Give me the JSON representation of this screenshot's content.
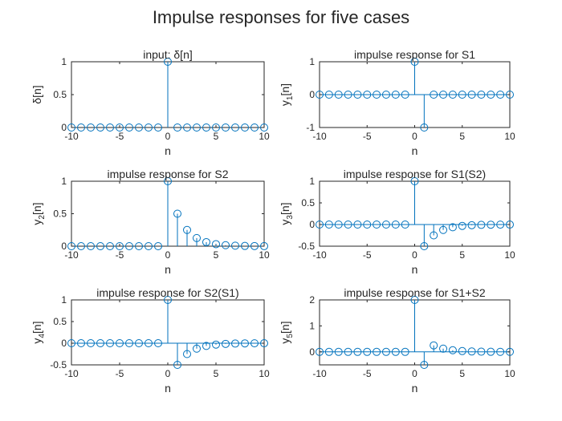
{
  "figure": {
    "title": "Impulse responses for five cases"
  },
  "chart_data": [
    {
      "type": "stem",
      "title": "input: δ[n]",
      "xlabel": "n",
      "ylabel": "δ[n]",
      "xlim": [
        -10,
        10
      ],
      "ylim": [
        0,
        1
      ],
      "xticks": [
        "-10",
        "-5",
        "0",
        "5",
        "10"
      ],
      "yticks": [
        "0",
        "0.5",
        "1"
      ],
      "x": [
        -10,
        -9,
        -8,
        -7,
        -6,
        -5,
        -4,
        -3,
        -2,
        -1,
        0,
        1,
        2,
        3,
        4,
        5,
        6,
        7,
        8,
        9,
        10
      ],
      "y": [
        0,
        0,
        0,
        0,
        0,
        0,
        0,
        0,
        0,
        0,
        1,
        0,
        0,
        0,
        0,
        0,
        0,
        0,
        0,
        0,
        0
      ]
    },
    {
      "type": "stem",
      "title": "impulse response for S1",
      "xlabel": "n",
      "ylabel": "y",
      "ylabel_sub": "1",
      "ylabel_tail": "[n]",
      "xlim": [
        -10,
        10
      ],
      "ylim": [
        -1,
        1
      ],
      "xticks": [
        "-10",
        "-5",
        "0",
        "5",
        "10"
      ],
      "yticks": [
        "-1",
        "0",
        "1"
      ],
      "x": [
        -10,
        -9,
        -8,
        -7,
        -6,
        -5,
        -4,
        -3,
        -2,
        -1,
        0,
        1,
        2,
        3,
        4,
        5,
        6,
        7,
        8,
        9,
        10
      ],
      "y": [
        0,
        0,
        0,
        0,
        0,
        0,
        0,
        0,
        0,
        0,
        1,
        -1,
        0,
        0,
        0,
        0,
        0,
        0,
        0,
        0,
        0
      ]
    },
    {
      "type": "stem",
      "title": "impulse response for S2",
      "xlabel": "n",
      "ylabel": "y",
      "ylabel_sub": "2",
      "ylabel_tail": "[n]",
      "xlim": [
        -10,
        10
      ],
      "ylim": [
        0,
        1
      ],
      "xticks": [
        "-10",
        "-5",
        "0",
        "5",
        "10"
      ],
      "yticks": [
        "0",
        "0.5",
        "1"
      ],
      "x": [
        -10,
        -9,
        -8,
        -7,
        -6,
        -5,
        -4,
        -3,
        -2,
        -1,
        0,
        1,
        2,
        3,
        4,
        5,
        6,
        7,
        8,
        9,
        10
      ],
      "y": [
        0,
        0,
        0,
        0,
        0,
        0,
        0,
        0,
        0,
        0,
        1,
        0.5,
        0.25,
        0.125,
        0.0625,
        0.03125,
        0.015625,
        0.0078125,
        0.0039,
        0.002,
        0.001
      ]
    },
    {
      "type": "stem",
      "title": "impulse response for S1(S2)",
      "xlabel": "n",
      "ylabel": "y",
      "ylabel_sub": "3",
      "ylabel_tail": "[n]",
      "xlim": [
        -10,
        10
      ],
      "ylim": [
        -0.5,
        1
      ],
      "xticks": [
        "-10",
        "-5",
        "0",
        "5",
        "10"
      ],
      "yticks": [
        "-0.5",
        "0",
        "0.5",
        "1"
      ],
      "x": [
        -10,
        -9,
        -8,
        -7,
        -6,
        -5,
        -4,
        -3,
        -2,
        -1,
        0,
        1,
        2,
        3,
        4,
        5,
        6,
        7,
        8,
        9,
        10
      ],
      "y": [
        0,
        0,
        0,
        0,
        0,
        0,
        0,
        0,
        0,
        0,
        1,
        -0.5,
        -0.25,
        -0.125,
        -0.0625,
        -0.03125,
        -0.015625,
        -0.0078,
        -0.0039,
        -0.002,
        -0.001
      ]
    },
    {
      "type": "stem",
      "title": "impulse response for S2(S1)",
      "xlabel": "n",
      "ylabel": "y",
      "ylabel_sub": "4",
      "ylabel_tail": "[n]",
      "xlim": [
        -10,
        10
      ],
      "ylim": [
        -0.5,
        1
      ],
      "xticks": [
        "-10",
        "-5",
        "0",
        "5",
        "10"
      ],
      "yticks": [
        "-0.5",
        "0",
        "0.5",
        "1"
      ],
      "x": [
        -10,
        -9,
        -8,
        -7,
        -6,
        -5,
        -4,
        -3,
        -2,
        -1,
        0,
        1,
        2,
        3,
        4,
        5,
        6,
        7,
        8,
        9,
        10
      ],
      "y": [
        0,
        0,
        0,
        0,
        0,
        0,
        0,
        0,
        0,
        0,
        1,
        -0.5,
        -0.25,
        -0.125,
        -0.0625,
        -0.03125,
        -0.015625,
        -0.0078,
        -0.0039,
        -0.002,
        -0.001
      ]
    },
    {
      "type": "stem",
      "title": "impulse response for S1+S2",
      "xlabel": "n",
      "ylabel": "y",
      "ylabel_sub": "5",
      "ylabel_tail": "[n]",
      "xlim": [
        -10,
        10
      ],
      "ylim": [
        -0.5,
        2
      ],
      "xticks": [
        "-10",
        "-5",
        "0",
        "5",
        "10"
      ],
      "yticks": [
        "0",
        "1",
        "2"
      ],
      "x": [
        -10,
        -9,
        -8,
        -7,
        -6,
        -5,
        -4,
        -3,
        -2,
        -1,
        0,
        1,
        2,
        3,
        4,
        5,
        6,
        7,
        8,
        9,
        10
      ],
      "y": [
        0,
        0,
        0,
        0,
        0,
        0,
        0,
        0,
        0,
        0,
        2,
        -0.5,
        0.25,
        0.125,
        0.0625,
        0.03125,
        0.015625,
        0.0078,
        0.0039,
        0.002,
        0.001
      ]
    }
  ],
  "style": {
    "stem_color": "#0072BD",
    "axis_color": "#262626"
  }
}
